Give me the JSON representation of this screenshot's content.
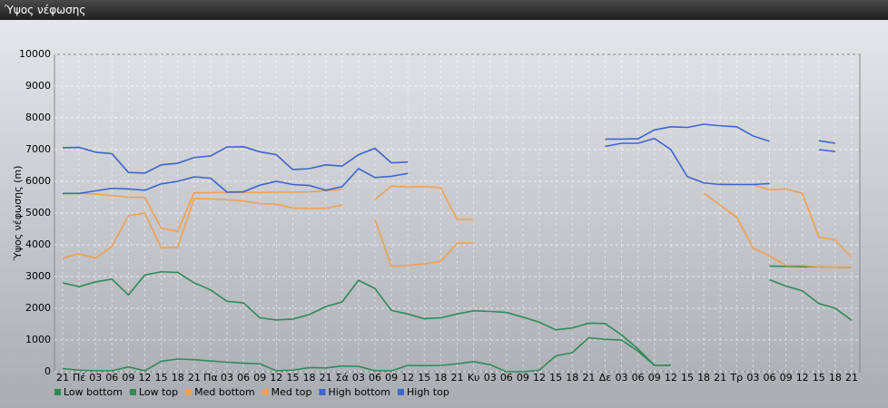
{
  "window_title": "Ύψος νέφωσης",
  "chart_data": {
    "type": "line",
    "y_label": "Ύψος νέφωσης (m)",
    "grid": true,
    "legend": "bottom",
    "categories": [
      "21",
      "Πέ",
      "03",
      "06",
      "09",
      "12",
      "15",
      "18",
      "21",
      "Πα",
      "03",
      "06",
      "09",
      "12",
      "15",
      "18",
      "21",
      "Σά",
      "03",
      "06",
      "09",
      "12",
      "15",
      "18",
      "21",
      "Κυ",
      "03",
      "06",
      "09",
      "12",
      "15",
      "18",
      "21",
      "Δε",
      "03",
      "06",
      "09",
      "12",
      "15",
      "18",
      "21",
      "Τρ",
      "03",
      "06",
      "09",
      "12",
      "15",
      "18",
      "21"
    ],
    "ylim": [
      0,
      10000
    ],
    "yticks": [
      0,
      1000,
      2000,
      3000,
      4000,
      5000,
      6000,
      7000,
      8000,
      9000,
      10000
    ],
    "series": [
      {
        "name": "Low bottom",
        "color": "#2e8b57",
        "values": [
          100,
          50,
          30,
          30,
          150,
          30,
          330,
          400,
          380,
          340,
          300,
          270,
          250,
          30,
          50,
          130,
          120,
          180,
          170,
          30,
          30,
          200,
          190,
          200,
          250,
          320,
          220,
          0,
          0,
          50,
          500,
          600,
          1070,
          1020,
          1000,
          650,
          200,
          200,
          null,
          null,
          null,
          null,
          null,
          3330,
          3320,
          3310,
          3300,
          3290,
          3280
        ]
      },
      {
        "name": "Low top",
        "color": "#2e8b57",
        "values": [
          2800,
          2680,
          2830,
          2920,
          2420,
          3050,
          3150,
          3130,
          2800,
          2580,
          2220,
          2170,
          1700,
          1630,
          1660,
          1800,
          2050,
          2200,
          2880,
          2620,
          1930,
          1820,
          1670,
          1700,
          1820,
          1920,
          1900,
          1870,
          1720,
          1560,
          1320,
          1380,
          1530,
          1520,
          1160,
          720,
          200,
          200,
          null,
          null,
          null,
          null,
          null,
          2900,
          2700,
          2550,
          2150,
          2000,
          1620
        ]
      },
      {
        "name": "Med bottom",
        "color": "#f0a050",
        "values": [
          3580,
          3720,
          3580,
          3950,
          4920,
          5000,
          3900,
          3930,
          5460,
          5450,
          5420,
          5380,
          5300,
          5280,
          5160,
          5150,
          5150,
          5250,
          null,
          4800,
          3320,
          3350,
          3400,
          3480,
          4050,
          4060,
          null,
          null,
          null,
          null,
          null,
          null,
          null,
          null,
          null,
          null,
          null,
          null,
          null,
          5630,
          5250,
          4870,
          3900,
          3650,
          3350,
          3350,
          3300,
          3290,
          3280
        ]
      },
      {
        "name": "Med top",
        "color": "#f0a050",
        "values": [
          5620,
          5620,
          5600,
          5550,
          5500,
          5490,
          4520,
          4430,
          5640,
          5640,
          5650,
          5650,
          5650,
          5660,
          5660,
          5670,
          5700,
          5750,
          null,
          5430,
          5850,
          5820,
          5830,
          5800,
          4800,
          4800,
          null,
          null,
          null,
          null,
          null,
          null,
          null,
          null,
          null,
          null,
          null,
          null,
          null,
          null,
          5930,
          5900,
          5900,
          5730,
          5760,
          5620,
          4250,
          4150,
          3600
        ]
      },
      {
        "name": "High bottom",
        "color": "#3a66d0",
        "values": [
          5620,
          5620,
          5700,
          5780,
          5760,
          5720,
          5920,
          6000,
          6140,
          6100,
          5660,
          5670,
          5880,
          6000,
          5900,
          5870,
          5720,
          5830,
          6400,
          6120,
          6160,
          6250,
          null,
          null,
          null,
          null,
          null,
          null,
          null,
          null,
          null,
          null,
          null,
          7100,
          7200,
          7200,
          7350,
          7000,
          6150,
          5950,
          5900,
          5900,
          5900,
          5930,
          null,
          null,
          7000,
          6940,
          null
        ]
      },
      {
        "name": "High top",
        "color": "#3a66d0",
        "values": [
          7060,
          7070,
          6920,
          6870,
          6280,
          6260,
          6520,
          6570,
          6750,
          6800,
          7080,
          7090,
          6930,
          6840,
          6370,
          6400,
          6520,
          6480,
          6840,
          7040,
          6580,
          6610,
          null,
          null,
          null,
          null,
          null,
          null,
          null,
          null,
          null,
          null,
          null,
          7330,
          7330,
          7340,
          7620,
          7720,
          7700,
          7800,
          7750,
          7720,
          7430,
          7260,
          null,
          null,
          7280,
          7200,
          null
        ]
      }
    ]
  }
}
